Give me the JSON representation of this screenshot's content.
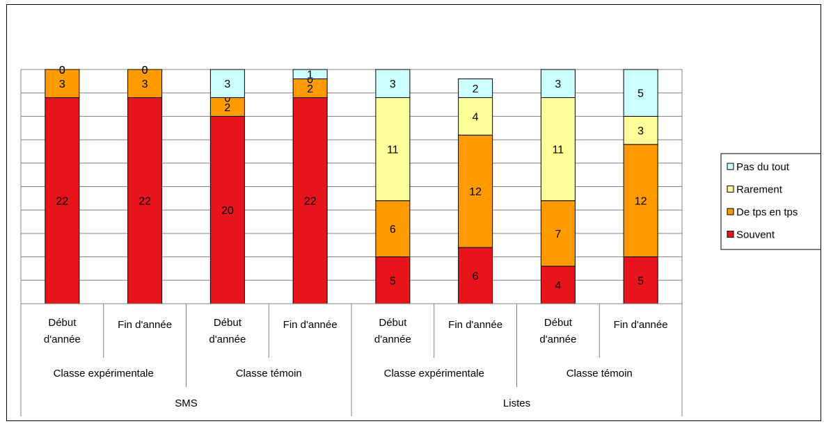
{
  "chart_data": {
    "type": "bar",
    "stacked": true,
    "ylim": [
      0,
      25
    ],
    "grid": true,
    "legend_position": "right",
    "colors": {
      "Souvent": "#e8141c",
      "De tps en tps": "#ff9b00",
      "Rarement": "#ffff99",
      "Pas du tout": "#ccffff"
    },
    "levels": {
      "top": [
        "SMS",
        "Listes"
      ],
      "middle": [
        "Classe expérimentale",
        "Classe témoin",
        "Classe expérimentale",
        "Classe témoin"
      ],
      "bottom": [
        [
          "Début",
          "d'année"
        ],
        [
          "Fin d'année"
        ],
        [
          "Début",
          "d'année"
        ],
        [
          "Fin d'année"
        ],
        [
          "Début",
          "d'année"
        ],
        [
          "Fin d'année"
        ],
        [
          "Début",
          "d'année"
        ],
        [
          "Fin d'année"
        ]
      ]
    },
    "series": [
      {
        "name": "Souvent",
        "values": [
          22,
          22,
          20,
          22,
          5,
          6,
          4,
          5
        ]
      },
      {
        "name": "De tps en tps",
        "values": [
          3,
          3,
          2,
          2,
          6,
          12,
          7,
          12
        ]
      },
      {
        "name": "Rarement",
        "values": [
          0,
          0,
          0,
          0,
          11,
          4,
          11,
          3
        ]
      },
      {
        "name": "Pas du tout",
        "values": [
          0,
          0,
          3,
          1,
          3,
          2,
          3,
          5
        ]
      }
    ],
    "legend_order": [
      "Pas du tout",
      "Rarement",
      "De tps en tps",
      "Souvent"
    ]
  }
}
